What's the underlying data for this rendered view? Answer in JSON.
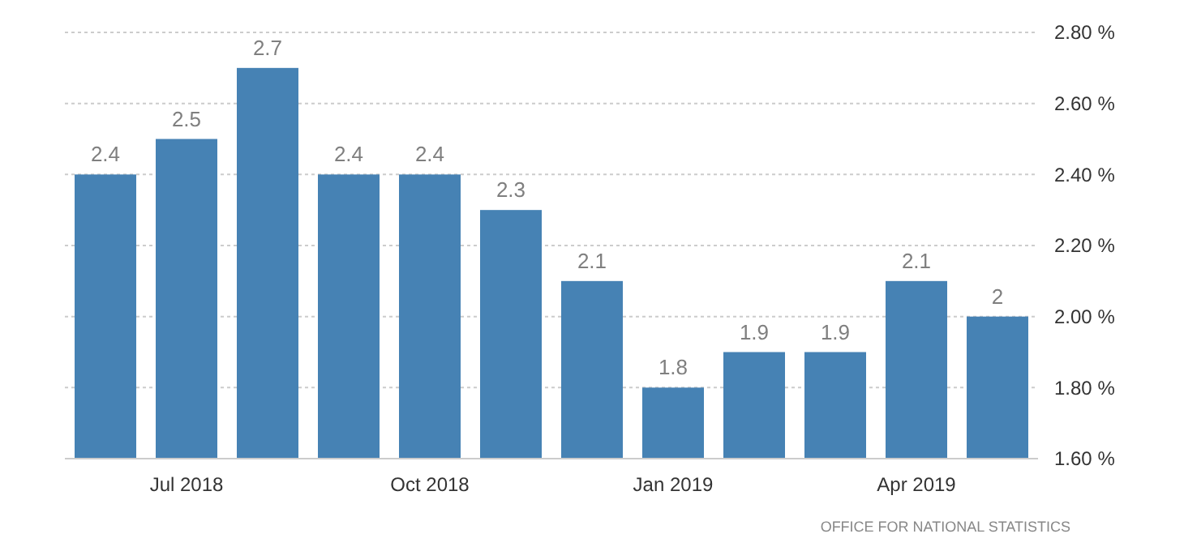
{
  "chart_data": {
    "type": "bar",
    "categories": [
      null,
      "Jul 2018",
      null,
      null,
      "Oct 2018",
      null,
      null,
      "Jan 2019",
      null,
      null,
      "Apr 2019",
      null
    ],
    "values": [
      2.4,
      2.5,
      2.7,
      2.4,
      2.4,
      2.3,
      2.1,
      1.8,
      1.9,
      1.9,
      2.1,
      2.0
    ],
    "color": "#4682b4",
    "ylim": [
      1.6,
      2.8
    ],
    "yticks": [
      {
        "value": 1.6,
        "label": "1.60 %"
      },
      {
        "value": 1.8,
        "label": "1.80 %"
      },
      {
        "value": 2.0,
        "label": "2.00 %"
      },
      {
        "value": 2.2,
        "label": "2.20 %"
      },
      {
        "value": 2.4,
        "label": "2.40 %"
      },
      {
        "value": 2.6,
        "label": "2.60 %"
      },
      {
        "value": 2.8,
        "label": "2.80 %"
      }
    ],
    "grid": "y",
    "data_labels": true,
    "annotations": [
      "OFFICE FOR NATIONAL STATISTICS"
    ]
  }
}
